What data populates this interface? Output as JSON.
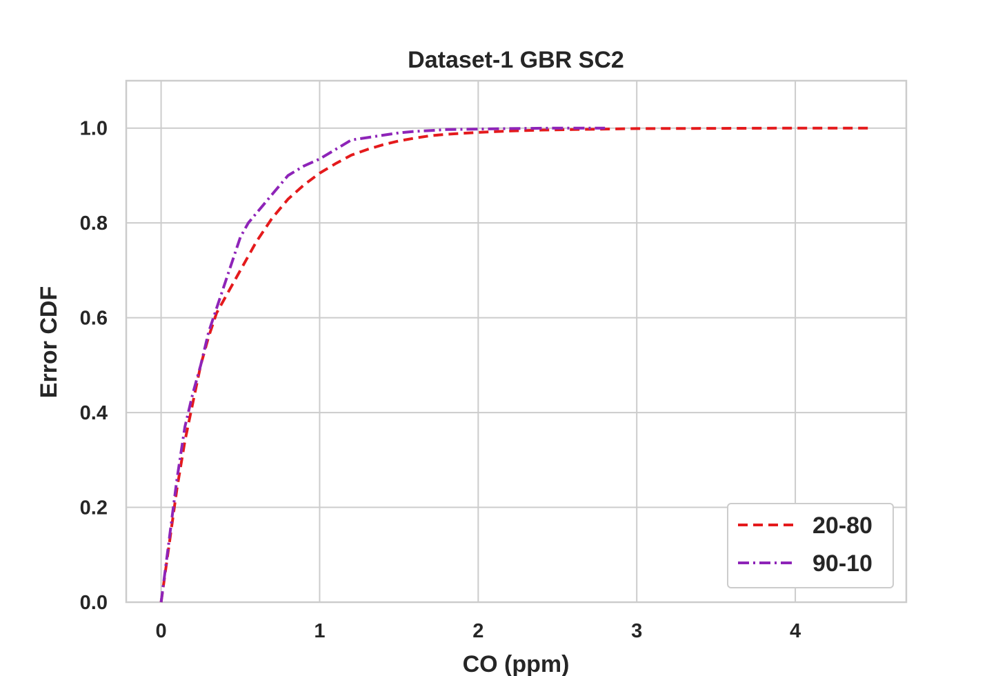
{
  "chart_data": {
    "type": "line",
    "title": "Dataset-1 GBR SC2",
    "xlabel": "CO (ppm)",
    "ylabel": "Error CDF",
    "xlim": [
      -0.22,
      4.7
    ],
    "ylim": [
      0.0,
      1.1
    ],
    "x_ticks": [
      0,
      1,
      2,
      3,
      4
    ],
    "x_tick_labels": [
      "0",
      "1",
      "2",
      "3",
      "4"
    ],
    "y_ticks": [
      0.0,
      0.2,
      0.4,
      0.6,
      0.8,
      1.0
    ],
    "y_tick_labels": [
      "0.0",
      "0.2",
      "0.4",
      "0.6",
      "0.8",
      "1.0"
    ],
    "grid": true,
    "legend_position": "lower-right",
    "series": [
      {
        "name": "20-80",
        "color": "#e41a1c",
        "line_style": "dashed",
        "x": [
          0.0,
          0.05,
          0.1,
          0.15,
          0.2,
          0.25,
          0.3,
          0.35,
          0.4,
          0.5,
          0.6,
          0.7,
          0.8,
          0.9,
          1.0,
          1.1,
          1.2,
          1.3,
          1.4,
          1.5,
          1.6,
          1.7,
          1.8,
          1.9,
          2.0,
          2.2,
          2.4,
          2.6,
          2.8,
          3.0,
          3.5,
          4.0,
          4.47
        ],
        "y": [
          0.0,
          0.12,
          0.24,
          0.34,
          0.42,
          0.5,
          0.56,
          0.61,
          0.64,
          0.7,
          0.76,
          0.81,
          0.85,
          0.88,
          0.905,
          0.925,
          0.943,
          0.955,
          0.965,
          0.973,
          0.979,
          0.984,
          0.987,
          0.989,
          0.991,
          0.994,
          0.996,
          0.997,
          0.998,
          0.999,
          0.9995,
          1.0,
          1.0
        ]
      },
      {
        "name": "90-10",
        "color": "#8e24b8",
        "line_style": "dashdot",
        "x": [
          0.0,
          0.05,
          0.1,
          0.15,
          0.2,
          0.25,
          0.3,
          0.35,
          0.4,
          0.45,
          0.5,
          0.55,
          0.6,
          0.65,
          0.7,
          0.75,
          0.8,
          0.9,
          1.0,
          1.1,
          1.2,
          1.3,
          1.4,
          1.5,
          1.6,
          1.7,
          1.8,
          2.0,
          2.2,
          2.5,
          2.8
        ],
        "y": [
          0.0,
          0.13,
          0.26,
          0.37,
          0.44,
          0.5,
          0.57,
          0.62,
          0.67,
          0.72,
          0.77,
          0.8,
          0.82,
          0.84,
          0.86,
          0.88,
          0.9,
          0.92,
          0.935,
          0.955,
          0.975,
          0.98,
          0.985,
          0.99,
          0.993,
          0.995,
          0.997,
          0.998,
          0.999,
          1.0,
          1.0
        ]
      }
    ]
  }
}
